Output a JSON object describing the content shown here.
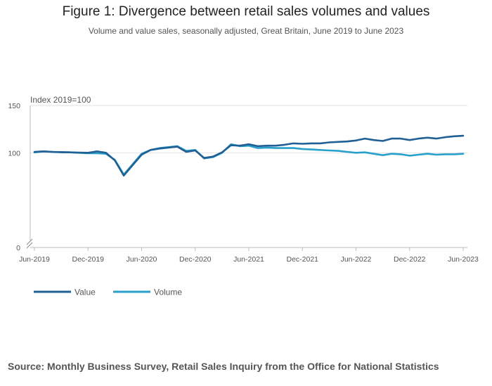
{
  "chart_data": {
    "type": "line",
    "title": "Figure 1: Divergence between retail sales volumes and values",
    "subtitle": "Volume and value sales, seasonally adjusted, Great Britain, June 2019 to June 2023",
    "ylabel": "Index 2019=100",
    "xlabel": "",
    "ylim": [
      0,
      150
    ],
    "y_ticks": [
      0,
      100,
      150
    ],
    "x_ticks": [
      "Jun-2019",
      "Dec-2019",
      "Jun-2020",
      "Dec-2020",
      "Jun-2021",
      "Dec-2021",
      "Jun-2022",
      "Dec-2022",
      "Jun-2023"
    ],
    "axis_break": true,
    "grid": true,
    "legend_position": "bottom-left",
    "series": [
      {
        "name": "Value",
        "color": "#206095",
        "values": [
          101,
          101.5,
          101,
          100.8,
          100.5,
          100.2,
          100,
          101.5,
          100,
          92,
          76,
          87,
          98,
          103,
          104.5,
          105.5,
          106.5,
          101,
          102.5,
          94.5,
          96,
          100.5,
          108,
          107.5,
          109,
          107,
          107.5,
          107.5,
          108.5,
          110,
          109.5,
          110,
          110,
          111,
          111.5,
          112,
          113,
          115,
          113.5,
          112.5,
          115,
          115,
          113.5,
          115,
          116,
          115,
          116.5,
          117.5,
          118
        ]
      },
      {
        "name": "Volume",
        "color": "#27a0cc",
        "values": [
          100.5,
          101.5,
          101,
          100.5,
          100.5,
          100,
          99.5,
          99.5,
          99,
          92.5,
          77,
          88,
          99,
          103,
          105,
          106,
          107,
          102,
          103,
          94,
          95.5,
          100,
          109,
          107,
          107.5,
          105,
          105.5,
          105,
          105,
          105,
          104,
          103.5,
          103,
          102.5,
          102,
          101,
          100,
          100.5,
          99,
          97.5,
          99,
          98.5,
          97,
          98,
          99,
          98,
          98.5,
          98.5,
          99
        ]
      }
    ]
  },
  "source": "Source: Monthly Business Survey, Retail Sales Inquiry from the Office for National Statistics"
}
